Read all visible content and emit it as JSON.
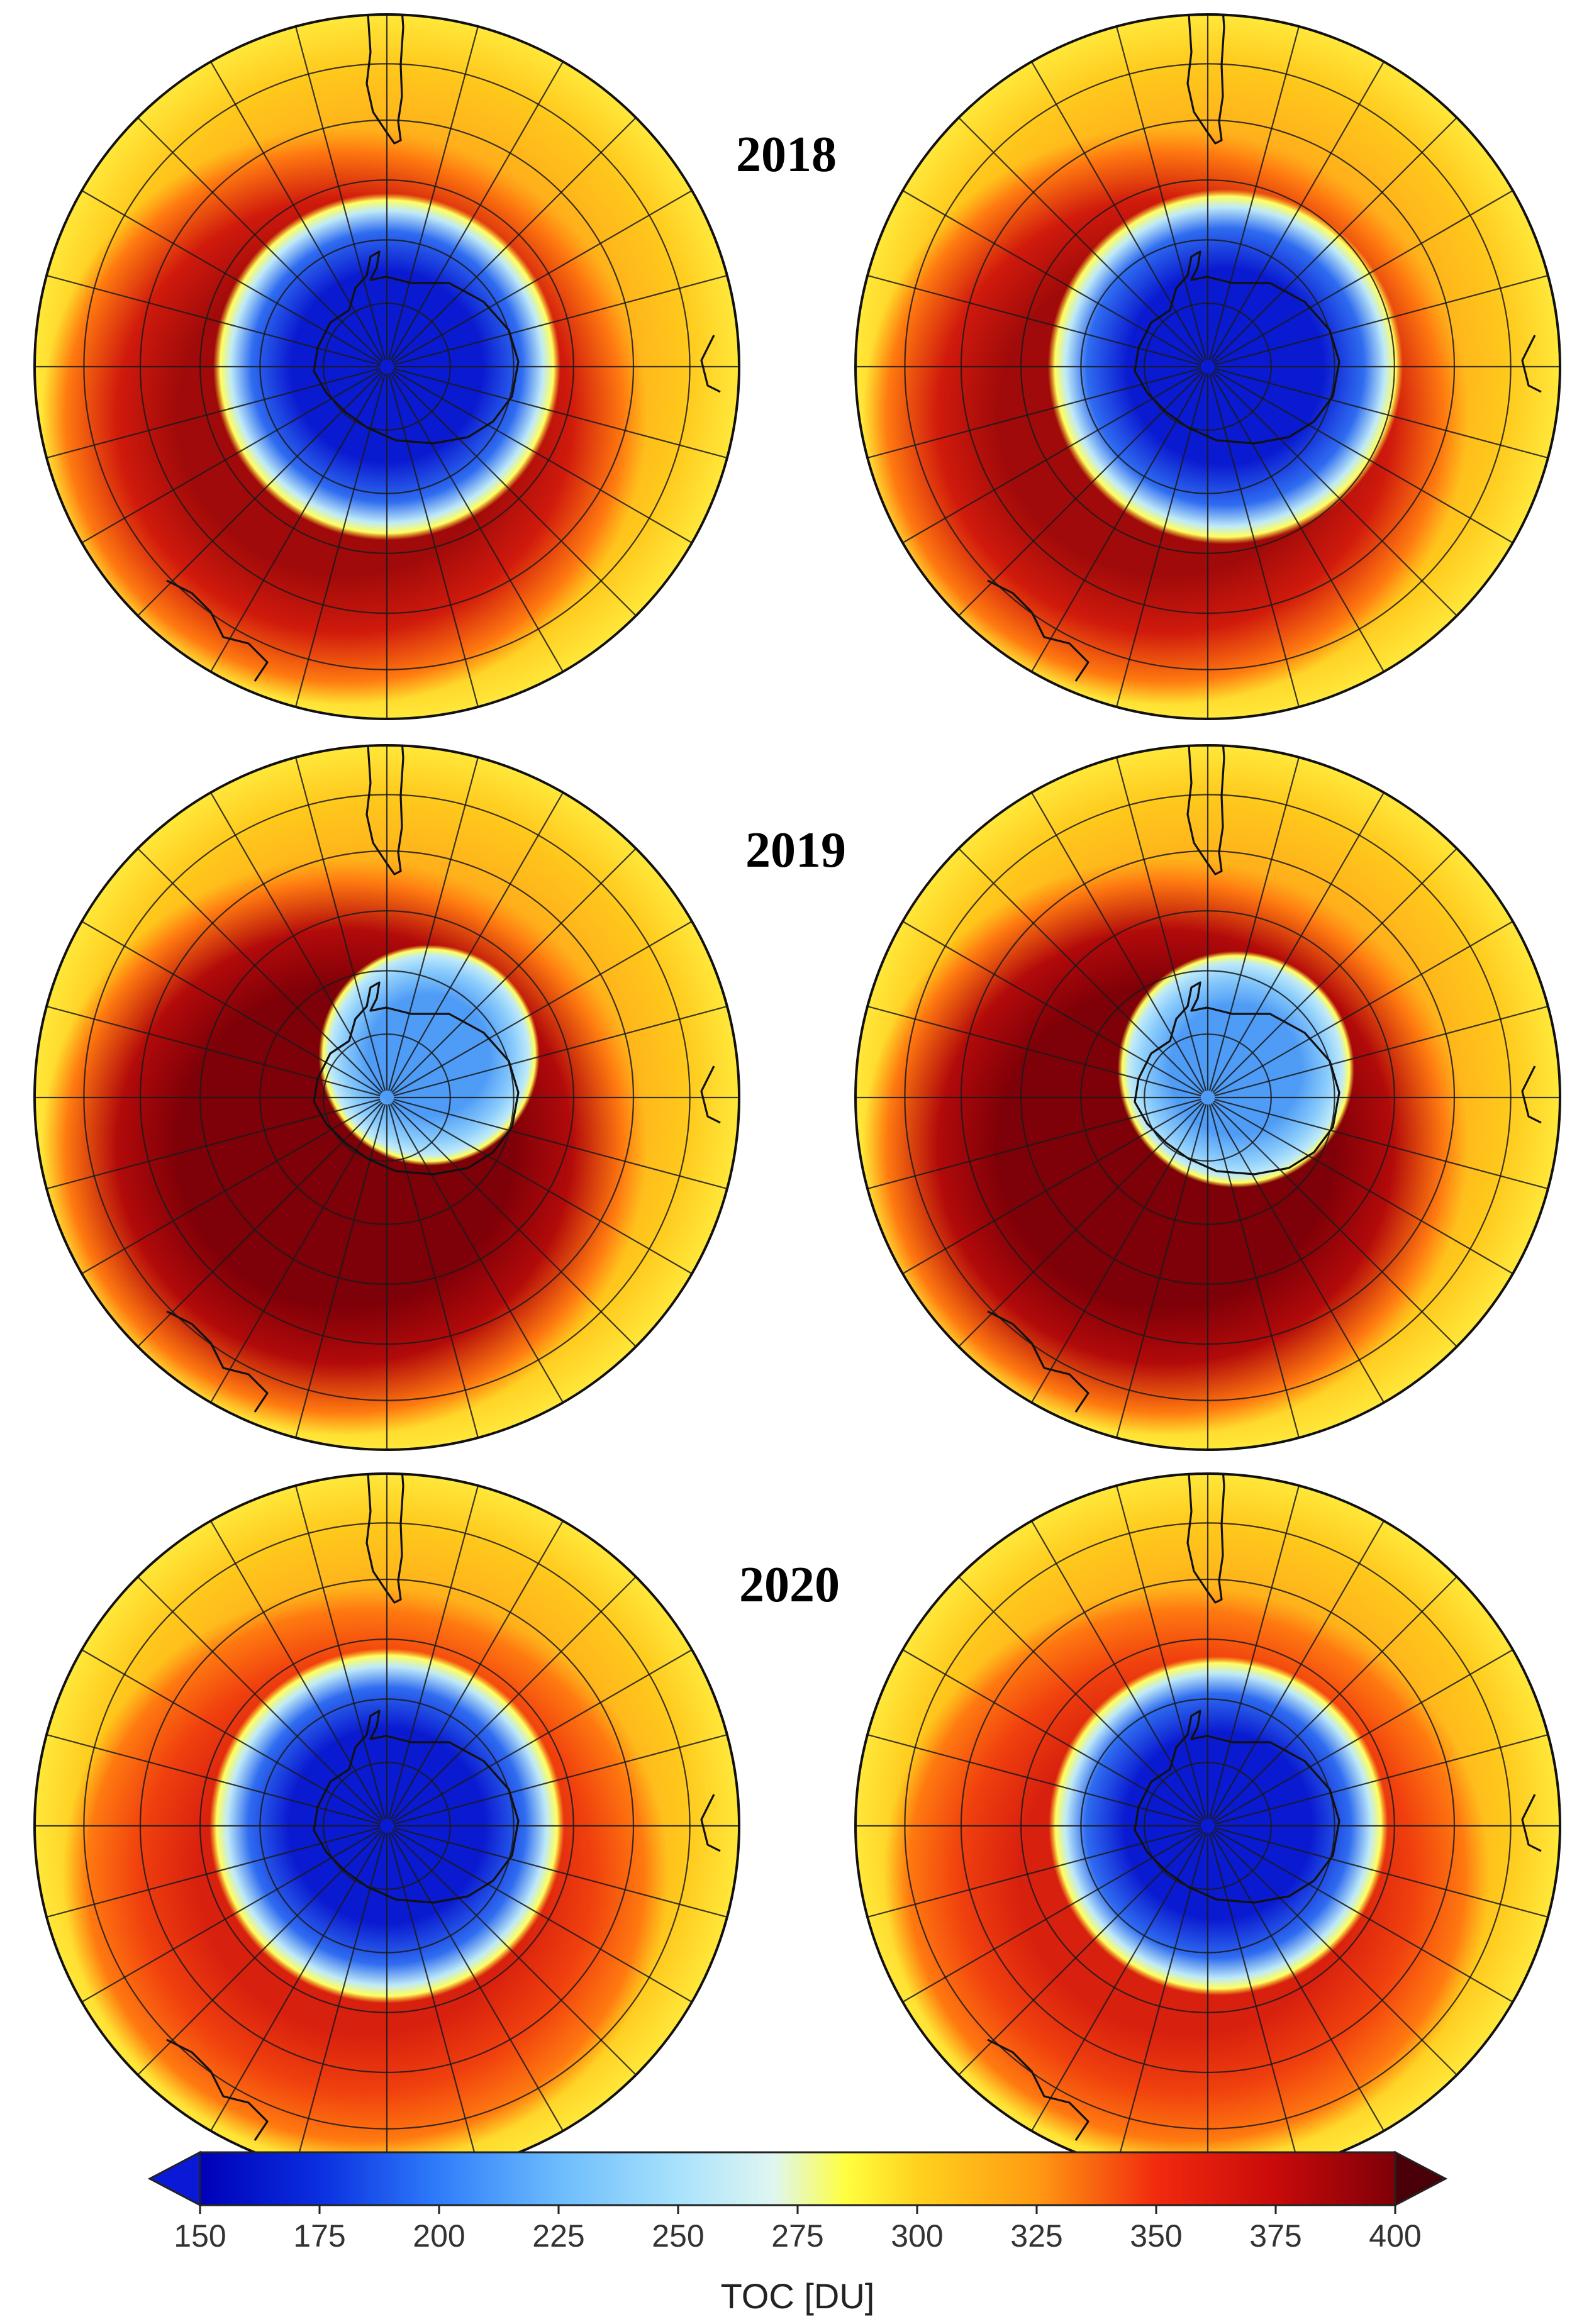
{
  "figure": {
    "type": "polar-stereographic ozone maps, southern hemisphere",
    "rows": [
      {
        "year_label": "2018",
        "panels": [
          {
            "hole_offset": [
              0.0,
              0.0
            ],
            "hole_radius": 0.44,
            "ring_peak_value": 385,
            "ring_strength": "moderate"
          },
          {
            "hole_offset": [
              0.05,
              0.0
            ],
            "hole_radius": 0.45,
            "ring_peak_value": 385,
            "ring_strength": "moderate"
          }
        ]
      },
      {
        "year_label": "2019",
        "panels": [
          {
            "hole_offset": [
              0.12,
              -0.12
            ],
            "hole_radius": 0.28,
            "ring_peak_value": 400,
            "ring_strength": "strong"
          },
          {
            "hole_offset": [
              0.08,
              -0.08
            ],
            "hole_radius": 0.3,
            "ring_peak_value": 400,
            "ring_strength": "strong"
          }
        ]
      },
      {
        "year_label": "2020",
        "panels": [
          {
            "hole_offset": [
              0.0,
              0.0
            ],
            "hole_radius": 0.45,
            "ring_peak_value": 360,
            "ring_strength": "weak"
          },
          {
            "hole_offset": [
              0.03,
              0.0
            ],
            "hole_radius": 0.43,
            "ring_peak_value": 360,
            "ring_strength": "weak"
          }
        ]
      }
    ]
  },
  "colorbar": {
    "title": "TOC [DU]",
    "min": 150,
    "max": 400,
    "ticks": [
      "150",
      "175",
      "200",
      "225",
      "250",
      "275",
      "300",
      "325",
      "350",
      "375",
      "400"
    ],
    "extend": "both",
    "low_extend_color": "#0a19d6",
    "high_extend_color": "#4a0008",
    "stops": [
      {
        "value": 150,
        "color": "#0000b8"
      },
      {
        "value": 175,
        "color": "#0a2fe0"
      },
      {
        "value": 200,
        "color": "#2f7dfa"
      },
      {
        "value": 225,
        "color": "#6cbcfc"
      },
      {
        "value": 250,
        "color": "#a8e2fc"
      },
      {
        "value": 270,
        "color": "#dff6f0"
      },
      {
        "value": 285,
        "color": "#ffff40"
      },
      {
        "value": 300,
        "color": "#ffd21e"
      },
      {
        "value": 325,
        "color": "#ff9a12"
      },
      {
        "value": 350,
        "color": "#f22a0e"
      },
      {
        "value": 375,
        "color": "#c80a0a"
      },
      {
        "value": 400,
        "color": "#7e0008"
      }
    ]
  }
}
